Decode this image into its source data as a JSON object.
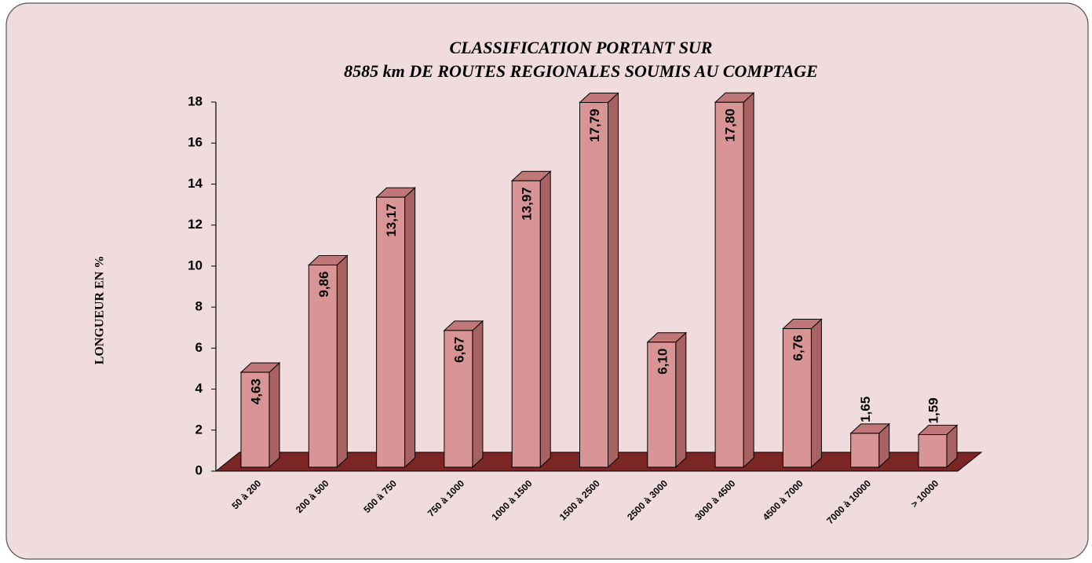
{
  "chart_data": {
    "type": "bar3d",
    "title": "CLASSIFICATION PORTANT SUR",
    "subtitle": "8585 km DE ROUTES REGIONALES SOUMIS AU COMPTAGE",
    "y_label": "LONGUEUR EN %",
    "categories": [
      "50 à 200",
      "200 à 500",
      "500 à 750",
      "750 à 1000",
      "1000 à 1500",
      "1500 à 2500",
      "2500 à 3000",
      "3000 à 4500",
      "4500 à 7000",
      "7000 à 10000",
      "> 10000"
    ],
    "values": [
      4.63,
      9.86,
      13.17,
      6.67,
      13.97,
      17.79,
      6.1,
      17.8,
      6.76,
      1.65,
      1.59
    ],
    "value_labels": [
      "4,63",
      "9,86",
      "13,17",
      "6,67",
      "13,97",
      "17,79",
      "6,10",
      "17,80",
      "6,76",
      "1,65",
      "1,59"
    ],
    "color": "#d99595",
    "ylim": [
      0,
      18
    ],
    "yticks": [
      0,
      2,
      4,
      6,
      8,
      10,
      12,
      14,
      16,
      18
    ]
  }
}
